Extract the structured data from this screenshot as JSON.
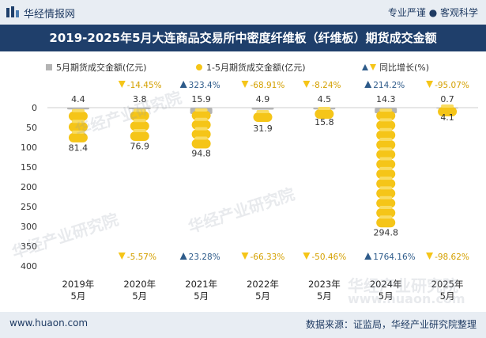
{
  "header": {
    "brand": "华经情报网",
    "tagline": "专业严谨 ● 客观科学",
    "title": "2019-2025年5月大连商品交易所中密度纤维板（纤维板）期货成交金额"
  },
  "footer": {
    "site": "www.huaon.com",
    "source": "数据来源：证监局，华经产业研究院整理"
  },
  "watermarks": [
    "华经产业研究院",
    "华经产业研究院",
    "华经产业研究院",
    "华经产业研究院",
    "www.huaon.com"
  ],
  "colors": {
    "may_series": "#b4b4b4",
    "cum_series": "#f5c518",
    "up": "#2e5b8a",
    "down": "#f5c518"
  },
  "chart_data": {
    "type": "bar",
    "categories": [
      "2019年\n5月",
      "2020年\n5月",
      "2021年\n5月",
      "2022年\n5月",
      "2023年\n5月",
      "2024年\n5月",
      "2025年\n5月"
    ],
    "y_axis": {
      "ticks": [
        0,
        50,
        100,
        150,
        200,
        250,
        300,
        350,
        400
      ],
      "range": [
        0,
        400
      ],
      "inverted": true
    },
    "legend": [
      {
        "name": "5月期货成交金额(亿元)",
        "marker": "square"
      },
      {
        "name": "1-5月期货成交金额(亿元)",
        "marker": "coin"
      },
      {
        "name": "同比增长(%)",
        "marker": "triangle"
      }
    ],
    "series": [
      {
        "name": "5月期货成交金额(亿元)",
        "values": [
          4.4,
          3.8,
          15.9,
          4.9,
          4.5,
          14.3,
          0.7
        ],
        "labels": [
          "4.4",
          "3.8",
          "15.9",
          "4.9",
          "4.5",
          "14.3",
          "0.7"
        ]
      },
      {
        "name": "1-5月期货成交金额(亿元)",
        "values": [
          81.4,
          76.9,
          94.8,
          31.9,
          15.8,
          294.8,
          4.1
        ],
        "labels": [
          "81.4",
          "76.9",
          "94.8",
          "31.9",
          "15.8",
          "294.8",
          "4.1"
        ]
      }
    ],
    "growth_may": {
      "values": [
        null,
        -14.45,
        323.4,
        -68.91,
        -8.24,
        214.2,
        -95.07
      ],
      "labels": [
        "",
        "-14.45%",
        "323.4%",
        "-68.91%",
        "-8.24%",
        "214.2%",
        "-95.07%"
      ]
    },
    "growth_cum": {
      "values": [
        null,
        -5.57,
        23.28,
        -66.33,
        -50.46,
        1764.16,
        -98.62
      ],
      "labels": [
        "",
        "-5.57%",
        "23.28%",
        "-66.33%",
        "-50.46%",
        "1764.16%",
        "-98.62%"
      ]
    }
  }
}
